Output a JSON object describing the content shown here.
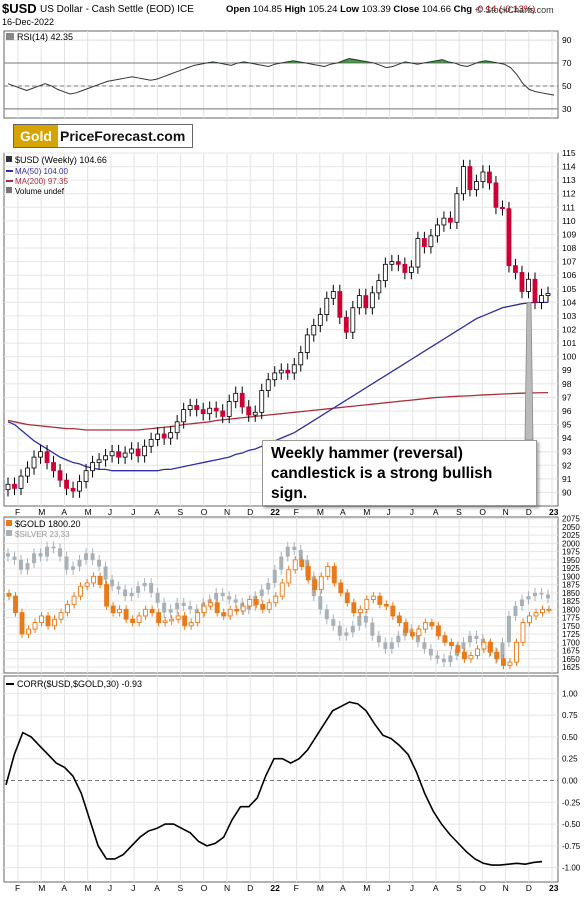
{
  "header": {
    "symbol": "$USD",
    "name": "US Dollar - Cash Settle (EOD) ICE",
    "date": "16-Dec-2022",
    "open_label": "Open",
    "open": "104.85",
    "high_label": "High",
    "high": "105.24",
    "low_label": "Low",
    "low": "103.39",
    "close_label": "Close",
    "close": "104.66",
    "chg_label": "Chg",
    "chg": "-0.14 (-0.13%)",
    "brand": "© StockCharts.com"
  },
  "logo": {
    "gold": "Gold",
    "rest": "PriceForecast.com"
  },
  "callout": {
    "line1": "Weekly hammer (reversal)",
    "line2": "candlestick is a strong bullish sign."
  },
  "colors": {
    "up_candle": "#ffffff",
    "down_candle": "#cc0033",
    "candle_outline": "#000000",
    "ma50": "#2f2fa0",
    "ma200": "#a8303a",
    "gold": "#e87a1a",
    "silver": "#a9b1b8",
    "rsi_fill": "#2e7d32",
    "corr_line": "#000000"
  },
  "x_axis_labels": [
    "F",
    "M",
    "A",
    "M",
    "J",
    "J",
    "A",
    "S",
    "O",
    "N",
    "D",
    "22",
    "F",
    "M",
    "A",
    "M",
    "J",
    "J",
    "A",
    "S",
    "O",
    "N",
    "D",
    "23"
  ],
  "chart_data": [
    {
      "panel": "rsi",
      "type": "line",
      "legend": "RSI(14) 42.35",
      "yticks": [
        30,
        50,
        70,
        90
      ],
      "ylim": [
        30,
        90
      ],
      "reference_lines": [
        30,
        50,
        70
      ],
      "values": [
        52,
        50,
        48,
        46,
        48,
        50,
        52,
        50,
        47,
        45,
        43,
        44,
        46,
        48,
        50,
        52,
        54,
        55,
        56,
        57,
        58,
        57,
        56,
        55,
        56,
        58,
        60,
        62,
        64,
        66,
        68,
        69,
        70,
        71,
        70,
        69,
        68,
        70,
        71,
        70,
        69,
        68,
        67,
        69,
        70,
        71,
        72,
        71,
        70,
        69,
        68,
        67,
        69,
        70,
        72,
        74,
        73,
        72,
        71,
        70,
        68,
        66,
        67,
        69,
        71,
        70,
        69,
        70,
        71,
        72,
        73,
        71,
        70,
        68,
        67,
        69,
        71,
        72,
        71,
        70,
        69,
        66,
        60,
        52,
        47,
        45,
        44,
        43,
        42
      ]
    },
    {
      "panel": "usd",
      "type": "candlestick",
      "legend": [
        "$USD (Weekly) 104.66",
        "MA(50) 104.00",
        "MA(200) 97.35",
        "Volume undef"
      ],
      "ylim": [
        89,
        115
      ],
      "yticks": [
        90,
        91,
        92,
        93,
        94,
        95,
        96,
        97,
        98,
        99,
        100,
        101,
        102,
        103,
        104,
        105,
        106,
        107,
        108,
        109,
        110,
        111,
        112,
        113,
        114,
        115
      ],
      "close": [
        90.6,
        90.3,
        91.2,
        91.8,
        92.6,
        93.0,
        92.2,
        91.6,
        90.9,
        90.3,
        90.1,
        90.8,
        91.6,
        92.2,
        92.4,
        92.7,
        93.0,
        92.6,
        92.9,
        93.2,
        92.7,
        93.4,
        93.9,
        94.3,
        94.0,
        94.4,
        95.2,
        96.1,
        96.4,
        96.1,
        95.8,
        96.2,
        96.0,
        95.6,
        96.7,
        97.3,
        96.3,
        95.7,
        95.9,
        97.5,
        98.3,
        98.8,
        99.0,
        98.8,
        99.4,
        100.3,
        101.6,
        102.3,
        103.1,
        104.3,
        104.8,
        102.9,
        101.8,
        103.6,
        104.5,
        103.6,
        104.7,
        105.6,
        106.8,
        107.0,
        106.8,
        106.2,
        106.6,
        108.7,
        108.1,
        108.9,
        109.7,
        110.2,
        109.9,
        112.0,
        114.0,
        112.3,
        112.9,
        113.6,
        112.8,
        111.0,
        110.9,
        106.7,
        106.2,
        104.8,
        105.7,
        104.0,
        104.5,
        104.66
      ],
      "ma50": [
        95.2,
        95.0,
        94.6,
        94.2,
        93.8,
        93.5,
        93.2,
        92.9,
        92.6,
        92.4,
        92.2,
        92.1,
        91.9,
        91.8,
        91.7,
        91.7,
        91.6,
        91.6,
        91.6,
        91.6,
        91.6,
        91.6,
        91.6,
        91.6,
        91.7,
        91.7,
        91.8,
        91.9,
        92.0,
        92.1,
        92.2,
        92.3,
        92.4,
        92.5,
        92.6,
        92.8,
        92.9,
        93.1,
        93.2,
        93.4,
        93.6,
        93.8,
        94.0,
        94.2,
        94.4,
        94.7,
        95.0,
        95.3,
        95.6,
        95.9,
        96.2,
        96.5,
        96.8,
        97.1,
        97.4,
        97.7,
        98.0,
        98.3,
        98.6,
        98.9,
        99.2,
        99.5,
        99.8,
        100.1,
        100.4,
        100.7,
        101.0,
        101.3,
        101.6,
        101.9,
        102.2,
        102.5,
        102.8,
        103.0,
        103.2,
        103.4,
        103.6,
        103.7,
        103.8,
        103.9,
        103.95,
        104.0,
        104.0,
        104.0
      ],
      "ma200": [
        95.3,
        95.2,
        95.1,
        95.0,
        94.95,
        94.9,
        94.85,
        94.8,
        94.75,
        94.7,
        94.7,
        94.65,
        94.6,
        94.6,
        94.6,
        94.6,
        94.6,
        94.6,
        94.6,
        94.6,
        94.6,
        94.65,
        94.7,
        94.75,
        94.8,
        94.85,
        94.9,
        95.0,
        95.05,
        95.1,
        95.15,
        95.2,
        95.3,
        95.35,
        95.4,
        95.45,
        95.5,
        95.55,
        95.6,
        95.65,
        95.7,
        95.75,
        95.8,
        95.85,
        95.9,
        95.95,
        96.0,
        96.05,
        96.1,
        96.15,
        96.2,
        96.25,
        96.3,
        96.35,
        96.4,
        96.45,
        96.5,
        96.55,
        96.6,
        96.65,
        96.7,
        96.75,
        96.8,
        96.85,
        96.9,
        96.95,
        97.0,
        97.02,
        97.05,
        97.08,
        97.1,
        97.12,
        97.15,
        97.18,
        97.2,
        97.22,
        97.25,
        97.27,
        97.29,
        97.31,
        97.32,
        97.33,
        97.34,
        97.35
      ]
    },
    {
      "panel": "gold_silver",
      "type": "candlestick",
      "legend": [
        "$GOLD 1800.20",
        "$SILVER 23.33"
      ],
      "ylim": [
        1610,
        2080
      ],
      "yticks": [
        1625,
        1650,
        1675,
        1700,
        1725,
        1750,
        1775,
        1800,
        1825,
        1850,
        1875,
        1900,
        1925,
        1950,
        1975,
        2000,
        2025,
        2050,
        2075
      ],
      "gold_close": [
        1840,
        1790,
        1725,
        1740,
        1760,
        1780,
        1750,
        1770,
        1790,
        1815,
        1840,
        1870,
        1880,
        1900,
        1875,
        1810,
        1790,
        1800,
        1770,
        1760,
        1780,
        1800,
        1790,
        1760,
        1765,
        1770,
        1780,
        1750,
        1760,
        1790,
        1810,
        1820,
        1790,
        1780,
        1800,
        1795,
        1810,
        1830,
        1815,
        1800,
        1820,
        1840,
        1880,
        1920,
        1950,
        1930,
        1890,
        1860,
        1900,
        1930,
        1880,
        1850,
        1820,
        1790,
        1800,
        1830,
        1840,
        1815,
        1810,
        1780,
        1760,
        1730,
        1720,
        1740,
        1760,
        1750,
        1720,
        1700,
        1690,
        1670,
        1650,
        1660,
        1680,
        1700,
        1670,
        1650,
        1630,
        1640,
        1700,
        1760,
        1780,
        1790,
        1800,
        1800.2
      ],
      "silver_close": [
        1960,
        1950,
        1920,
        1940,
        1970,
        1960,
        1990,
        1985,
        1960,
        1920,
        1930,
        1950,
        1970,
        1950,
        1930,
        1890,
        1870,
        1860,
        1840,
        1850,
        1870,
        1880,
        1850,
        1820,
        1790,
        1800,
        1820,
        1810,
        1800,
        1790,
        1820,
        1830,
        1850,
        1840,
        1830,
        1820,
        1800,
        1810,
        1840,
        1860,
        1880,
        1920,
        1960,
        1990,
        1980,
        1950,
        1900,
        1840,
        1800,
        1770,
        1750,
        1720,
        1730,
        1750,
        1780,
        1760,
        1720,
        1700,
        1680,
        1700,
        1720,
        1740,
        1730,
        1700,
        1680,
        1660,
        1650,
        1640,
        1660,
        1680,
        1700,
        1720,
        1710,
        1690,
        1670,
        1650,
        1700,
        1780,
        1810,
        1830,
        1840,
        1850,
        1845,
        1833
      ]
    },
    {
      "panel": "corr",
      "type": "line",
      "legend": "CORR($USD,$GOLD,30) -0.93",
      "ylim": [
        -1.05,
        1.05
      ],
      "yticks": [
        -1.0,
        -0.75,
        -0.5,
        -0.25,
        0.0,
        0.25,
        0.5,
        0.75,
        1.0
      ],
      "yticklabels": [
        "-1.00",
        "-0.75",
        "-0.50",
        "-0.25",
        "0.00",
        "0.25",
        "0.50",
        "0.75",
        "1.00"
      ],
      "values": [
        -0.05,
        0.3,
        0.55,
        0.5,
        0.4,
        0.3,
        0.2,
        0.15,
        0.05,
        -0.15,
        -0.45,
        -0.75,
        -0.9,
        -0.9,
        -0.85,
        -0.75,
        -0.65,
        -0.58,
        -0.55,
        -0.5,
        -0.5,
        -0.55,
        -0.6,
        -0.7,
        -0.75,
        -0.72,
        -0.65,
        -0.45,
        -0.3,
        -0.3,
        -0.2,
        0.05,
        0.25,
        0.25,
        0.2,
        0.25,
        0.35,
        0.5,
        0.65,
        0.8,
        0.85,
        0.9,
        0.88,
        0.8,
        0.65,
        0.52,
        0.48,
        0.4,
        0.3,
        0.1,
        -0.15,
        -0.35,
        -0.5,
        -0.62,
        -0.72,
        -0.82,
        -0.9,
        -0.95,
        -0.97,
        -0.97,
        -0.96,
        -0.95,
        -0.96,
        -0.94,
        -0.93
      ]
    }
  ]
}
